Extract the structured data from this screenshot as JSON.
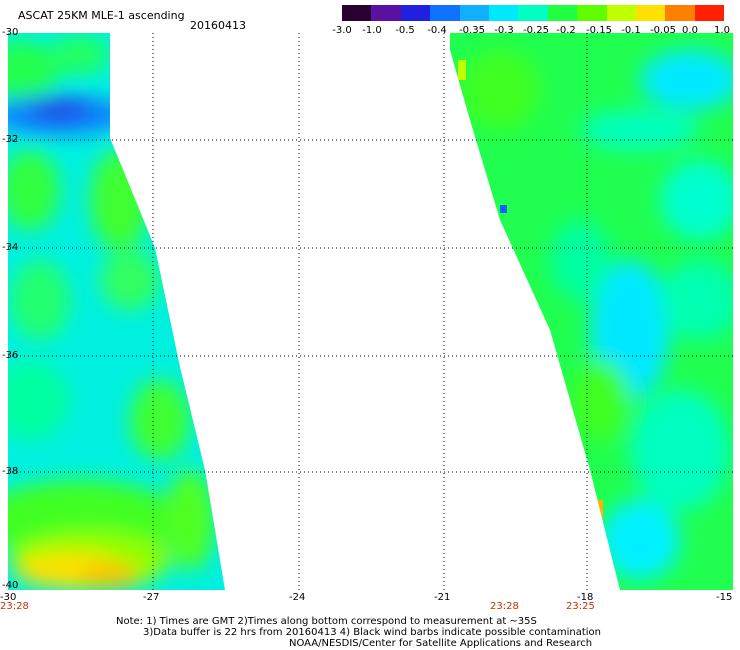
{
  "header": {
    "title": "ASCAT 25KM MLE-1 ascending",
    "date": "20160413"
  },
  "colorbar": {
    "labels": [
      "-3.0",
      "-1.0",
      "-0.5",
      "-0.4",
      "-0.35",
      "-0.3",
      "-0.25",
      "-0.2",
      "-0.15",
      "-0.1",
      "-0.05",
      "0.0",
      "1.0"
    ],
    "colors": [
      "#2a0030",
      "#5a10a0",
      "#2020e0",
      "#1070ff",
      "#10b0ff",
      "#00e8ff",
      "#00ffc0",
      "#20ff40",
      "#60ff00",
      "#c0ff00",
      "#ffe000",
      "#ff8000",
      "#ff2000"
    ]
  },
  "axes": {
    "x_ticks": [
      "-30",
      "-27",
      "-24",
      "-21",
      "-18",
      "-15"
    ],
    "y_ticks": [
      "-30",
      "-32",
      "-34",
      "-36",
      "-38",
      "-40"
    ],
    "x_range": [
      -30,
      -15
    ],
    "y_range": [
      -30,
      -40
    ]
  },
  "times": [
    "23:28",
    "23:28",
    "23:25"
  ],
  "notes": [
    "Note: 1) Times are GMT 2)Times along bottom correspond to measurement at ~35S",
    "3)Data buffer is 22 hrs from 20160413 4) Black wind barbs indicate possible contamination",
    "NOAA/NESDIS/Center for Satellite Applications and Research"
  ]
}
